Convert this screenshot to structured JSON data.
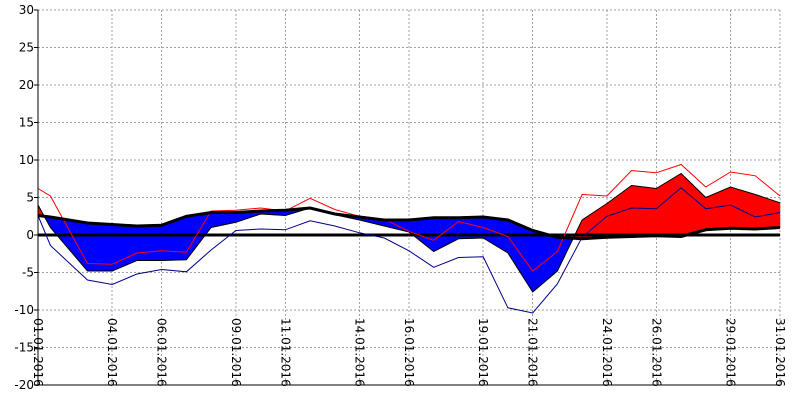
{
  "chart_data": {
    "type": "area",
    "title": "",
    "xlabel": "",
    "ylabel": "",
    "ylim": [
      -20,
      30
    ],
    "yticks": [
      30,
      25,
      20,
      15,
      10,
      5,
      0,
      -5,
      -10,
      -15,
      -20
    ],
    "x_tick_labels": [
      "01.01.2016",
      "04.01.2016",
      "06.01.2016",
      "09.01.2016",
      "11.01.2016",
      "14.01.2016",
      "16.01.2016",
      "19.01.2016",
      "21.01.2016",
      "24.01.2016",
      "26.01.2016",
      "29.01.2016",
      "31.01.2016"
    ],
    "x_tick_days": [
      1,
      4,
      6,
      9,
      11,
      14,
      16,
      19,
      21,
      24,
      26,
      29,
      31
    ],
    "grid": true,
    "colors": {
      "below_fill": "#0000ff",
      "above_fill": "#ff0000",
      "norm_line": "#000000",
      "zero_line": "#000000",
      "grid": "#a0a0a0",
      "upper_line": "#ff0000",
      "lower_line": "#00008b"
    },
    "x_days": [
      1,
      1.5,
      3,
      4,
      5,
      6,
      7,
      8,
      9,
      10,
      11,
      12,
      13,
      14,
      15,
      16,
      17,
      18,
      19,
      20,
      21,
      22,
      23,
      24,
      25,
      26,
      27,
      28,
      29,
      30,
      31
    ],
    "series": [
      {
        "role": "norm",
        "values": [
          2.6,
          2.4,
          1.6,
          1.4,
          1.2,
          1.3,
          2.5,
          3.0,
          3.0,
          3.2,
          3.3,
          3.6,
          2.8,
          2.4,
          2.0,
          2.0,
          2.3,
          2.3,
          2.4,
          2.0,
          0.6,
          -0.3,
          -0.5,
          -0.3,
          -0.2,
          -0.1,
          -0.2,
          0.7,
          0.9,
          0.8,
          1.0
        ]
      },
      {
        "role": "mean",
        "values": [
          4.0,
          1.0,
          -4.8,
          -4.8,
          -3.4,
          -3.4,
          -3.3,
          1.0,
          1.7,
          2.8,
          2.6,
          3.6,
          2.7,
          2.0,
          1.2,
          0.4,
          -2.2,
          -0.5,
          -0.4,
          -2.4,
          -7.6,
          -4.8,
          2.0,
          4.2,
          6.6,
          6.2,
          8.2,
          5.0,
          6.4,
          5.4,
          4.3
        ]
      },
      {
        "role": "upper",
        "values": [
          6.2,
          5.2,
          -3.8,
          -3.9,
          -2.4,
          -2.1,
          -2.3,
          3.2,
          3.3,
          3.6,
          3.2,
          4.9,
          3.4,
          2.5,
          2.1,
          0.5,
          -0.7,
          1.8,
          1.0,
          -0.2,
          -4.8,
          -2.2,
          5.4,
          5.2,
          8.6,
          8.3,
          9.4,
          6.4,
          8.4,
          7.9,
          5.2
        ]
      },
      {
        "role": "lower",
        "values": [
          2.6,
          -1.4,
          -6.0,
          -6.6,
          -5.2,
          -4.6,
          -4.9,
          -2.0,
          0.6,
          0.8,
          0.7,
          1.9,
          1.2,
          0.3,
          -0.4,
          -2.1,
          -4.3,
          -3.0,
          -2.9,
          -9.7,
          -10.4,
          -6.5,
          -0.3,
          2.5,
          3.6,
          3.5,
          6.3,
          3.5,
          4.0,
          2.4,
          3.0
        ]
      }
    ]
  }
}
